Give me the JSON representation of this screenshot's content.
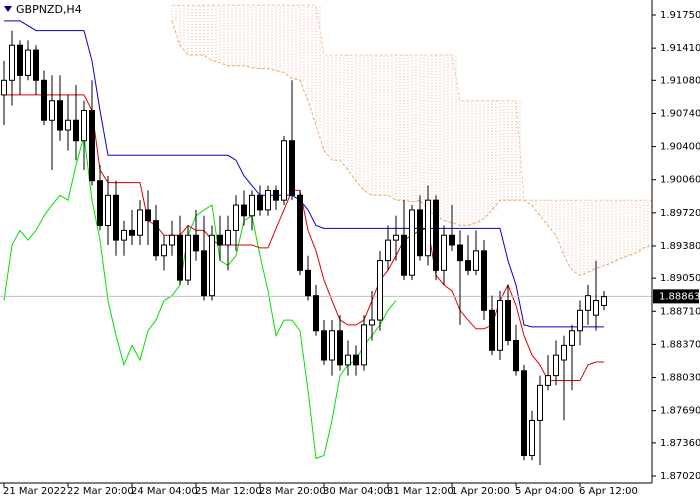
{
  "chart_data": {
    "type": "candlestick",
    "title": "GBPNZD,H4",
    "categories": [
      "21 Mar 2022",
      null,
      null,
      null,
      null,
      null,
      null,
      null,
      "22 Mar 20:00",
      null,
      null,
      null,
      null,
      null,
      null,
      null,
      "24 Mar 04:00",
      null,
      null,
      null,
      null,
      null,
      null,
      null,
      "25 Mar 12:00",
      null,
      null,
      null,
      null,
      null,
      null,
      null,
      "28 Mar 20:00",
      null,
      null,
      null,
      null,
      null,
      null,
      null,
      "30 Mar 04:00",
      null,
      null,
      null,
      null,
      null,
      null,
      null,
      "31 Mar 12:00",
      null,
      null,
      null,
      null,
      null,
      null,
      null,
      "1 Apr 20:00",
      null,
      null,
      null,
      null,
      null,
      null,
      null,
      "5 Apr 04:00",
      null,
      null,
      null,
      null,
      null,
      null,
      null,
      "6 Apr 12:00",
      null,
      null,
      null,
      null,
      null,
      null,
      null,
      null,
      null
    ],
    "open": [
      1.9093,
      1.9108,
      1.9144,
      1.9113,
      1.9139,
      1.9108,
      1.9067,
      1.9087,
      1.9057,
      1.9067,
      1.9046,
      1.9077,
      1.9005,
      1.8959,
      1.899,
      1.8944,
      1.8954,
      1.8949,
      1.8975,
      1.8964,
      1.8928,
      1.8939,
      1.8949,
      1.8903,
      1.8949,
      1.8933,
      1.8887,
      1.8949,
      1.8939,
      1.8954,
      1.898,
      1.8969,
      1.899,
      1.8975,
      1.8995,
      1.8985,
      1.9046,
      1.899,
      1.8913,
      1.8887,
      1.8851,
      1.8821,
      1.8851,
      1.8816,
      1.8826,
      1.8816,
      1.8857,
      1.8862,
      1.8923,
      1.8944,
      1.8949,
      1.8908,
      1.8975,
      1.8928,
      1.8985,
      1.8913,
      1.8949,
      1.8939,
      1.8923,
      1.8913,
      1.8933,
      1.8872,
      1.8831,
      1.8882,
      1.8841,
      1.881,
      1.8723,
      1.8759,
      1.8795,
      1.8805,
      1.8821,
      1.8836,
      1.8851,
      1.8872,
      1.8867,
      1.8877,
      null,
      null,
      null,
      null,
      null,
      null
    ],
    "high": [
      1.9128,
      1.9159,
      1.9149,
      1.9149,
      1.9144,
      1.9118,
      1.9113,
      1.9113,
      1.9093,
      1.9103,
      1.9087,
      1.9108,
      1.9021,
      1.901,
      1.9005,
      1.8964,
      1.8975,
      1.8985,
      1.8995,
      1.898,
      1.8949,
      1.8964,
      1.8969,
      1.8959,
      1.8975,
      1.8969,
      1.8959,
      1.8969,
      1.8969,
      1.899,
      1.8995,
      1.8995,
      1.9,
      1.9,
      1.9,
      1.9051,
      1.9108,
      1.8995,
      1.8928,
      1.8898,
      1.8862,
      1.8862,
      1.8867,
      1.8841,
      1.8836,
      1.8867,
      1.8892,
      1.8933,
      1.8959,
      1.8969,
      1.8985,
      1.898,
      1.899,
      1.9,
      1.899,
      1.8959,
      1.898,
      1.8954,
      1.8949,
      1.8954,
      1.8944,
      1.8887,
      1.8892,
      1.8898,
      1.8857,
      1.8816,
      1.8769,
      1.8805,
      1.8826,
      1.8841,
      1.8846,
      1.8857,
      1.8882,
      1.8898,
      1.8923,
      1.8892,
      null,
      null,
      null,
      null,
      null,
      null
    ],
    "low": [
      1.9062,
      1.9082,
      1.9093,
      1.9108,
      1.9093,
      1.9062,
      1.9016,
      1.9046,
      1.9036,
      1.9026,
      1.9016,
      1.9,
      1.8954,
      1.8939,
      1.8928,
      1.8928,
      1.8939,
      1.8939,
      1.8939,
      1.8923,
      1.8913,
      1.8928,
      1.8898,
      1.8898,
      1.8923,
      1.8882,
      1.8882,
      1.8923,
      1.8913,
      1.8933,
      1.8959,
      1.8954,
      1.8969,
      1.8969,
      1.8975,
      1.898,
      1.8985,
      1.8908,
      1.8882,
      1.8846,
      1.8816,
      1.8805,
      1.881,
      1.8805,
      1.8805,
      1.881,
      1.8841,
      1.8851,
      1.8913,
      1.8923,
      1.8903,
      1.8903,
      1.8923,
      1.8918,
      1.8903,
      1.8898,
      1.8933,
      1.8857,
      1.8908,
      1.8908,
      1.8862,
      1.8826,
      1.8821,
      1.8836,
      1.8805,
      1.8718,
      1.8718,
      1.8713,
      1.879,
      1.8795,
      1.8759,
      1.879,
      1.8836,
      1.8857,
      1.8851,
      1.8872,
      null,
      null,
      null,
      null,
      null,
      null
    ],
    "close": [
      1.9108,
      1.9144,
      1.9113,
      1.9139,
      1.9108,
      1.9067,
      1.9087,
      1.9057,
      1.9067,
      1.9046,
      1.9077,
      1.9005,
      1.8959,
      1.899,
      1.8944,
      1.8954,
      1.8949,
      1.8975,
      1.8964,
      1.8928,
      1.8939,
      1.8949,
      1.8903,
      1.8949,
      1.8933,
      1.8887,
      1.8949,
      1.8939,
      1.8954,
      1.898,
      1.8969,
      1.899,
      1.8975,
      1.8995,
      1.8985,
      1.9046,
      1.899,
      1.8913,
      1.8887,
      1.8851,
      1.8821,
      1.8851,
      1.8816,
      1.8826,
      1.8816,
      1.8857,
      1.8862,
      1.8923,
      1.8944,
      1.8949,
      1.8908,
      1.8975,
      1.8928,
      1.8985,
      1.8913,
      1.8949,
      1.8939,
      1.8923,
      1.8913,
      1.8933,
      1.8872,
      1.8831,
      1.8882,
      1.8841,
      1.881,
      1.8723,
      1.8759,
      1.8795,
      1.8805,
      1.8826,
      1.8836,
      1.8851,
      1.8872,
      1.8887,
      1.8882,
      1.8886,
      null,
      null,
      null,
      null,
      null,
      null
    ],
    "up_color": "#ffffff",
    "down_color": "#000000",
    "outline_color": "#000000",
    "ylim": [
      1.86948,
      1.91904
    ],
    "yticks": [
      {
        "value": 1.9175,
        "label": "1.91750"
      },
      {
        "value": 1.9141,
        "label": "1.91410"
      },
      {
        "value": 1.9108,
        "label": "1.91080"
      },
      {
        "value": 1.9074,
        "label": "1.90740"
      },
      {
        "value": 1.904,
        "label": "1.90400"
      },
      {
        "value": 1.9006,
        "label": "1.90060"
      },
      {
        "value": 1.8972,
        "label": "1.89720"
      },
      {
        "value": 1.8938,
        "label": "1.89380"
      },
      {
        "value": 1.8905,
        "label": "1.89050"
      },
      {
        "value": 1.8871,
        "label": "1.88710"
      },
      {
        "value": 1.8837,
        "label": "1.88370"
      },
      {
        "value": 1.8803,
        "label": "1.88030"
      },
      {
        "value": 1.8769,
        "label": "1.87690"
      },
      {
        "value": 1.8736,
        "label": "1.87360"
      },
      {
        "value": 1.8702,
        "label": "1.87020"
      }
    ],
    "grid": false,
    "last_price": {
      "value": 1.88863,
      "label": "1.88863"
    },
    "last_price_color": "#c0c0c0",
    "cloud_color": "#f0b090",
    "span_a": {
      "color": "#f4a460",
      "values": [
        null,
        null,
        null,
        null,
        null,
        null,
        null,
        null,
        null,
        null,
        null,
        null,
        null,
        null,
        null,
        null,
        null,
        null,
        null,
        null,
        null,
        1.9169,
        1.9144,
        1.9134,
        1.9134,
        1.9134,
        1.9128,
        1.9126,
        1.9123,
        1.9123,
        1.9123,
        1.9121,
        1.912,
        1.912,
        1.9118,
        1.9116,
        1.911,
        1.9108,
        1.9087,
        1.9062,
        1.9036,
        1.9026,
        1.9026,
        1.9016,
        1.9005,
        1.8995,
        1.899,
        1.899,
        1.899,
        1.8985,
        1.8985,
        1.8983,
        1.8985,
        1.8975,
        1.8969,
        1.8964,
        1.8962,
        1.8959,
        1.8959,
        1.8962,
        1.8966,
        1.8975,
        1.8985,
        1.8985,
        1.8985,
        1.8985,
        1.898,
        1.8969,
        1.8959,
        1.8949,
        1.8928,
        1.8913,
        1.8908,
        1.8911,
        1.8915,
        1.8918,
        1.8921,
        1.8925,
        1.8928,
        1.8931,
        1.8936,
        1.8939
      ]
    },
    "span_b": {
      "color": "#f4c8a8",
      "values": [
        null,
        null,
        null,
        null,
        null,
        null,
        null,
        null,
        null,
        null,
        null,
        null,
        null,
        null,
        null,
        null,
        null,
        null,
        null,
        null,
        null,
        1.9185,
        1.9185,
        1.9185,
        1.9185,
        1.9185,
        1.9185,
        1.9185,
        1.9185,
        1.9185,
        1.9185,
        1.9185,
        1.9185,
        1.9185,
        1.9185,
        1.9185,
        1.9185,
        1.9185,
        1.9185,
        1.9185,
        1.9134,
        1.9134,
        1.9134,
        1.9134,
        1.9134,
        1.9134,
        1.9134,
        1.9134,
        1.9134,
        1.9134,
        1.9134,
        1.9134,
        1.9134,
        1.9134,
        1.9134,
        1.9134,
        1.9134,
        1.9087,
        1.9087,
        1.9087,
        1.9087,
        1.9087,
        1.9087,
        1.9087,
        1.9087,
        1.8985,
        1.8985,
        1.8985,
        1.8985,
        1.8985,
        1.8985,
        1.8985,
        1.8985,
        1.8985,
        1.8985,
        1.8985,
        1.8985,
        1.8985,
        1.8985,
        1.8985,
        1.8985,
        1.8985
      ]
    },
    "lines": [
      {
        "color": "#00e000",
        "values": [
          1.8882,
          1.8939,
          1.8954,
          1.8944,
          1.8954,
          1.8969,
          1.898,
          1.899,
          1.8985,
          1.9021,
          1.9051,
          1.8985,
          1.8944,
          1.8882,
          1.8846,
          1.8816,
          1.8836,
          1.8821,
          1.8851,
          1.8862,
          1.8882,
          1.8887,
          1.8898,
          1.8949,
          1.8969,
          1.8975,
          1.898,
          1.8923,
          1.8918,
          1.8928,
          1.8964,
          1.8969,
          1.8928,
          1.8892,
          1.8846,
          1.8862,
          1.8862,
          1.8851,
          1.879,
          1.872,
          1.8723,
          1.8759,
          1.8805,
          1.8816,
          1.8821,
          1.8836,
          1.8846,
          1.8857,
          1.8872,
          1.8882,
          null,
          null,
          null,
          null,
          null,
          null,
          null,
          null,
          null,
          null,
          null,
          null,
          null,
          null,
          null,
          null,
          null,
          null,
          null,
          null,
          null,
          null,
          null,
          null,
          null,
          null,
          null,
          null,
          null,
          null,
          null,
          null
        ]
      },
      {
        "color": "#e00000",
        "values": [
          1.9093,
          1.9093,
          1.9093,
          1.9093,
          1.9093,
          1.9093,
          1.9093,
          1.9093,
          1.9093,
          1.9093,
          1.9093,
          1.9077,
          1.9016,
          1.9003,
          1.9003,
          1.9003,
          1.9003,
          1.9003,
          1.8964,
          1.8959,
          1.8949,
          1.8949,
          1.8949,
          1.8959,
          1.8954,
          1.8954,
          1.8944,
          1.8939,
          1.8939,
          1.8939,
          1.8939,
          1.8939,
          1.8936,
          1.8936,
          1.8956,
          1.8975,
          1.8995,
          1.8995,
          1.8954,
          1.8933,
          1.8903,
          1.8882,
          1.8862,
          1.8857,
          1.8857,
          1.8862,
          1.8882,
          1.8903,
          1.8913,
          1.8928,
          1.8944,
          1.8949,
          1.8954,
          1.8956,
          1.8908,
          1.8898,
          1.8892,
          1.8872,
          1.8862,
          1.8853,
          1.8853,
          1.8857,
          1.8882,
          1.8898,
          1.8877,
          1.8846,
          1.8826,
          1.8816,
          1.88,
          1.88,
          1.88,
          1.88,
          1.88,
          1.8816,
          1.8819,
          1.8819,
          null,
          null,
          null,
          null,
          null,
          null
        ]
      },
      {
        "color": "#0000c8",
        "values": [
          1.9169,
          1.9169,
          1.9169,
          1.9164,
          1.9159,
          1.9159,
          1.9159,
          1.9159,
          1.9159,
          1.9159,
          1.9159,
          1.9128,
          1.9077,
          1.9031,
          1.9031,
          1.9031,
          1.9031,
          1.9031,
          1.9031,
          1.9031,
          1.9031,
          1.9031,
          1.9031,
          1.9031,
          1.9031,
          1.9031,
          1.9031,
          1.9031,
          1.9031,
          1.9026,
          1.901,
          1.9,
          1.899,
          1.899,
          1.899,
          1.899,
          1.899,
          1.8985,
          1.8975,
          1.8959,
          1.8956,
          1.8956,
          1.8956,
          1.8956,
          1.8956,
          1.8956,
          1.8956,
          1.8956,
          1.8956,
          1.8956,
          1.8956,
          1.8956,
          1.8956,
          1.8956,
          1.8956,
          1.8956,
          1.8956,
          1.8956,
          1.8956,
          1.8956,
          1.8956,
          1.8956,
          1.8956,
          1.8923,
          1.8898,
          1.8857,
          1.8855,
          1.8855,
          1.8855,
          1.8855,
          1.8855,
          1.8855,
          1.8855,
          1.8855,
          1.8855,
          1.8855,
          null,
          null,
          null,
          null,
          null,
          null
        ]
      }
    ]
  }
}
